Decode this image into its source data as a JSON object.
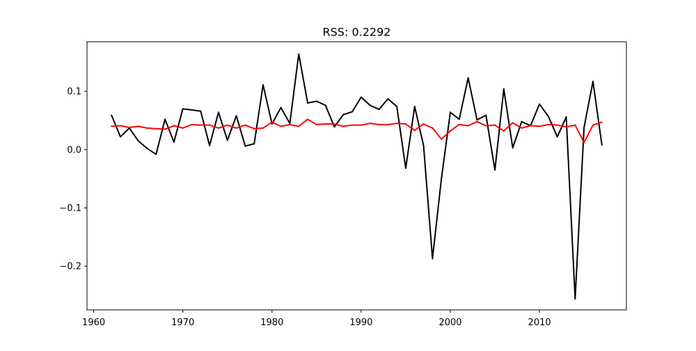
{
  "chart_data": {
    "type": "line",
    "title": "RSS: 0.2292",
    "xlabel": "",
    "ylabel": "",
    "xlim": [
      1959.25,
      2019.75
    ],
    "ylim": [
      -0.275,
      0.185
    ],
    "xticks": [
      1960,
      1970,
      1980,
      1990,
      2000,
      2010
    ],
    "yticks": [
      0.1,
      0.0,
      -0.1,
      -0.2
    ],
    "ytick_labels": [
      "0.1",
      "0.0",
      "−0.1",
      "−0.2"
    ],
    "grid": false,
    "legend": null,
    "x": [
      1962,
      1963,
      1964,
      1965,
      1966,
      1967,
      1968,
      1969,
      1970,
      1971,
      1972,
      1973,
      1974,
      1975,
      1976,
      1977,
      1978,
      1979,
      1980,
      1981,
      1982,
      1983,
      1984,
      1985,
      1986,
      1987,
      1988,
      1989,
      1990,
      1991,
      1992,
      1993,
      1994,
      1995,
      1996,
      1997,
      1998,
      1999,
      2000,
      2001,
      2002,
      2003,
      2004,
      2005,
      2006,
      2007,
      2008,
      2009,
      2010,
      2011,
      2012,
      2013,
      2014,
      2015,
      2016,
      2017
    ],
    "series": [
      {
        "color": "#000000",
        "values": [
          0.059,
          0.022,
          0.037,
          0.015,
          0.002,
          -0.008,
          0.052,
          0.013,
          0.07,
          0.068,
          0.066,
          0.007,
          0.064,
          0.016,
          0.058,
          0.006,
          0.01,
          0.111,
          0.044,
          0.072,
          0.045,
          0.164,
          0.08,
          0.083,
          0.076,
          0.039,
          0.06,
          0.065,
          0.09,
          0.076,
          0.069,
          0.087,
          0.074,
          -0.032,
          0.074,
          0.007,
          -0.187,
          -0.05,
          0.064,
          0.052,
          0.123,
          0.051,
          0.059,
          -0.035,
          0.104,
          0.003,
          0.048,
          0.041,
          0.078,
          0.057,
          0.022,
          0.056,
          -0.256,
          0.038,
          0.117,
          0.008
        ]
      },
      {
        "color": "#ff0000",
        "values": [
          0.04,
          0.041,
          0.038,
          0.04,
          0.037,
          0.036,
          0.035,
          0.041,
          0.037,
          0.043,
          0.042,
          0.042,
          0.037,
          0.042,
          0.037,
          0.042,
          0.036,
          0.037,
          0.047,
          0.04,
          0.043,
          0.04,
          0.052,
          0.043,
          0.044,
          0.044,
          0.04,
          0.042,
          0.042,
          0.045,
          0.043,
          0.043,
          0.045,
          0.044,
          0.033,
          0.044,
          0.037,
          0.018,
          0.032,
          0.043,
          0.041,
          0.048,
          0.041,
          0.042,
          0.032,
          0.046,
          0.037,
          0.041,
          0.04,
          0.043,
          0.042,
          0.039,
          0.042,
          0.012,
          0.042,
          0.047
        ]
      }
    ]
  }
}
